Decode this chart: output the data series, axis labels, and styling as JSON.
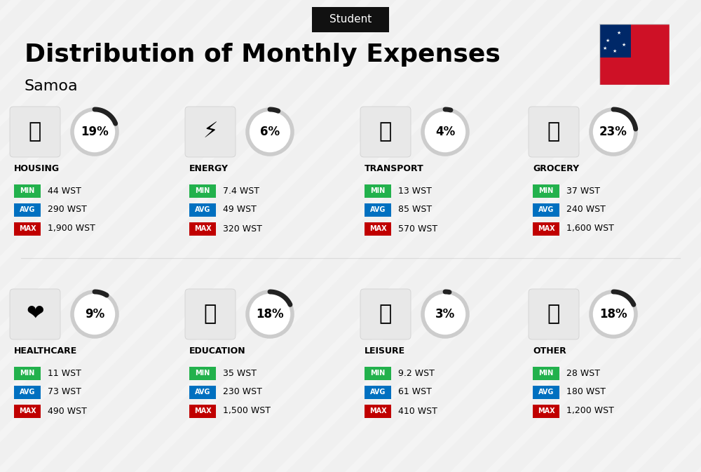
{
  "title": "Distribution of Monthly Expenses",
  "subtitle": "Samoa",
  "badge_text": "Student",
  "background_color": "#f0f0f0",
  "categories": [
    {
      "name": "HOUSING",
      "pct": 19,
      "min_val": "44 WST",
      "avg_val": "290 WST",
      "max_val": "1,900 WST",
      "emoji": "🏗",
      "row": 0,
      "col": 0
    },
    {
      "name": "ENERGY",
      "pct": 6,
      "min_val": "7.4 WST",
      "avg_val": "49 WST",
      "max_val": "320 WST",
      "emoji": "⚡",
      "row": 0,
      "col": 1
    },
    {
      "name": "TRANSPORT",
      "pct": 4,
      "min_val": "13 WST",
      "avg_val": "85 WST",
      "max_val": "570 WST",
      "emoji": "🚌",
      "row": 0,
      "col": 2
    },
    {
      "name": "GROCERY",
      "pct": 23,
      "min_val": "37 WST",
      "avg_val": "240 WST",
      "max_val": "1,600 WST",
      "emoji": "🛒",
      "row": 0,
      "col": 3
    },
    {
      "name": "HEALTHCARE",
      "pct": 9,
      "min_val": "11 WST",
      "avg_val": "73 WST",
      "max_val": "490 WST",
      "emoji": "❤",
      "row": 1,
      "col": 0
    },
    {
      "name": "EDUCATION",
      "pct": 18,
      "min_val": "35 WST",
      "avg_val": "230 WST",
      "max_val": "1,500 WST",
      "emoji": "🎓",
      "row": 1,
      "col": 1
    },
    {
      "name": "LEISURE",
      "pct": 3,
      "min_val": "9.2 WST",
      "avg_val": "61 WST",
      "max_val": "410 WST",
      "emoji": "🛍",
      "row": 1,
      "col": 2
    },
    {
      "name": "OTHER",
      "pct": 18,
      "min_val": "28 WST",
      "avg_val": "180 WST",
      "max_val": "1,200 WST",
      "emoji": "👜",
      "row": 1,
      "col": 3
    }
  ],
  "min_color": "#22b14c",
  "avg_color": "#0070c0",
  "max_color": "#c00000",
  "label_text_color": "#ffffff",
  "arc_color": "#222222",
  "arc_bg_color": "#cccccc",
  "flag_blue": "#002868",
  "flag_red": "#ce1126"
}
